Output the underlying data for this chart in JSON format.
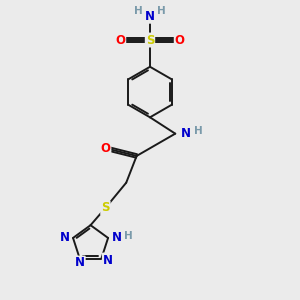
{
  "bg_color": "#ebebeb",
  "bond_color": "#1a1a1a",
  "colors": {
    "N": "#0000cc",
    "O": "#ff0000",
    "S": "#cccc00",
    "H": "#7a9aaa"
  },
  "lw": 1.4,
  "fs": 8.5,
  "fsh": 7.5
}
